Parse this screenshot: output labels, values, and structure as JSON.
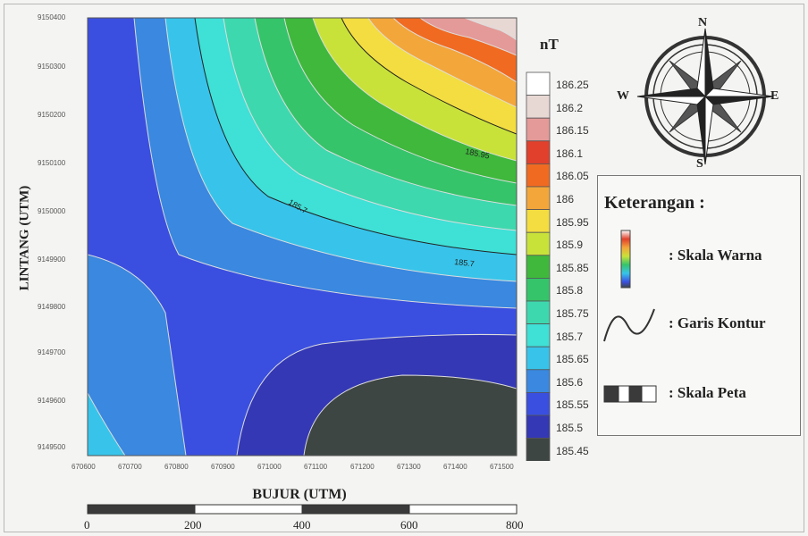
{
  "map": {
    "x_axis_label": "BUJUR (UTM)",
    "y_axis_label": "LINTANG (UTM)",
    "x_ticks": [
      "670600",
      "670700",
      "670800",
      "670900",
      "671000",
      "671100",
      "671200",
      "671300",
      "671400",
      "671500"
    ],
    "y_ticks": [
      "9150400",
      "9150300",
      "9150200",
      "9150100",
      "9150000",
      "9149900",
      "9149800",
      "9149700",
      "9149600",
      "9149500"
    ],
    "contour_labels": [
      "185.95",
      "185.7",
      "185.7"
    ]
  },
  "colorbar": {
    "unit": "nT",
    "levels": [
      "186.25",
      "186.2",
      "186.15",
      "186.1",
      "186.05",
      "186",
      "185.95",
      "185.9",
      "185.85",
      "185.8",
      "185.75",
      "185.7",
      "185.65",
      "185.6",
      "185.55",
      "185.5",
      "185.45"
    ],
    "colors": [
      "#ffffff",
      "#e8d8d4",
      "#e49a98",
      "#e0402c",
      "#f06a22",
      "#f3a63a",
      "#f3dd40",
      "#c9e23a",
      "#3fb83c",
      "#36c46a",
      "#3ed8ae",
      "#3fe0d6",
      "#38c4ea",
      "#3a88df",
      "#3a4fe0",
      "#3438b4",
      "#3e4644"
    ]
  },
  "compass": {
    "n": "N",
    "s": "S",
    "e": "E",
    "w": "W"
  },
  "legend": {
    "title": "Keterangan :",
    "items": [
      ": Skala Warna",
      ": Garis Kontur",
      ": Skala Peta"
    ]
  },
  "scalebar": {
    "labels": [
      "0",
      "200",
      "400",
      "600",
      "800"
    ]
  }
}
